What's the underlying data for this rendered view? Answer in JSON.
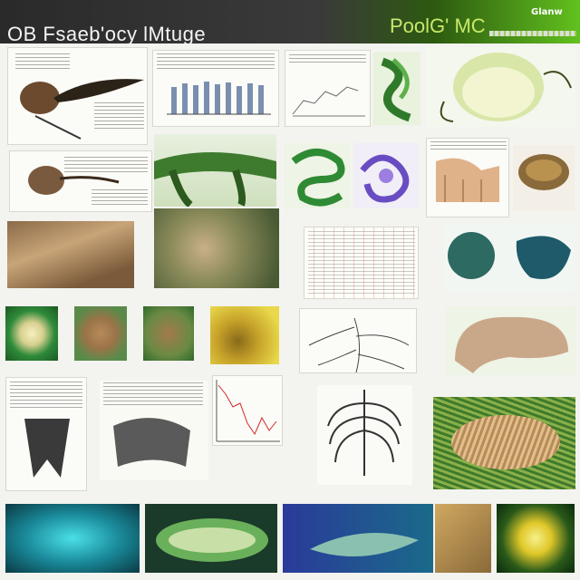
{
  "header": {
    "title_left": "OB Fsaeb'ocy lMtuge",
    "title_right": "PoolG' MC",
    "badge": "Glanw"
  },
  "colors": {
    "header_dark": "#2a2a2a",
    "header_green": "#62c11e",
    "background": "#f3f3ef"
  },
  "panels": [
    {
      "name": "eye-organ-diagram",
      "kind": "illustration"
    },
    {
      "name": "bar-chart-panel",
      "kind": "chart"
    },
    {
      "name": "line-chart-panel",
      "kind": "chart"
    },
    {
      "name": "green-ribbon-illustration",
      "kind": "illustration"
    },
    {
      "name": "pale-organ-sphere",
      "kind": "illustration"
    },
    {
      "name": "tissue-diagram",
      "kind": "illustration"
    },
    {
      "name": "green-tubules",
      "kind": "illustration"
    },
    {
      "name": "purple-structure",
      "kind": "illustration"
    },
    {
      "name": "cross-section-diagram",
      "kind": "illustration"
    },
    {
      "name": "brown-organ",
      "kind": "illustration"
    },
    {
      "name": "hair-texture-photo",
      "kind": "photo"
    },
    {
      "name": "green-microscopy-photo",
      "kind": "photo"
    },
    {
      "name": "data-table-grid",
      "kind": "table"
    },
    {
      "name": "teal-organ-pair",
      "kind": "illustration"
    },
    {
      "name": "cell-thumbnails",
      "kind": "photo"
    },
    {
      "name": "nerve-diagram",
      "kind": "illustration"
    },
    {
      "name": "brain-like-organ",
      "kind": "illustration"
    },
    {
      "name": "tooth-diagram",
      "kind": "illustration"
    },
    {
      "name": "red-line-plot",
      "kind": "chart"
    },
    {
      "name": "ribcage-diagram",
      "kind": "illustration"
    },
    {
      "name": "green-striated-tissue",
      "kind": "photo"
    },
    {
      "name": "cyan-microscopy",
      "kind": "photo"
    },
    {
      "name": "green-leaf-cell",
      "kind": "illustration"
    },
    {
      "name": "blue-fish-cell",
      "kind": "illustration"
    },
    {
      "name": "yellow-sphere-cell",
      "kind": "photo"
    }
  ]
}
